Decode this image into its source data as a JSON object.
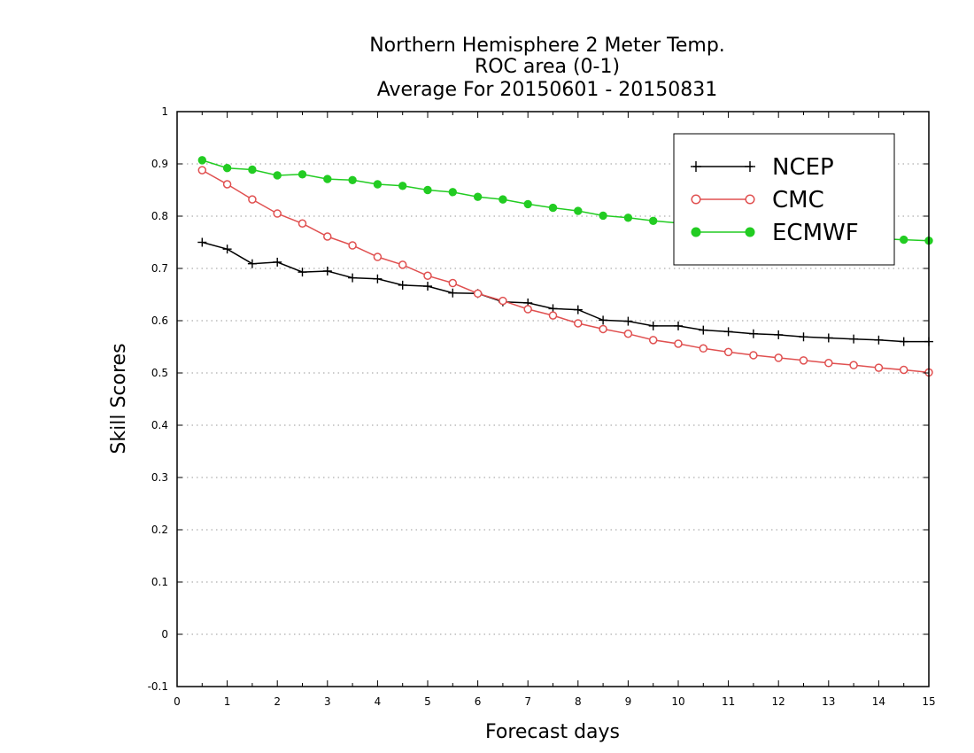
{
  "chart_data": {
    "type": "line",
    "title_lines": [
      "Northern Hemisphere 2 Meter Temp.",
      "ROC area (0-1)",
      "Average For 20150601 - 20150831"
    ],
    "xlabel": "Forecast days",
    "ylabel": "Skill Scores",
    "xlim": [
      0,
      15
    ],
    "ylim": [
      -0.1,
      1
    ],
    "x_ticks": [
      0,
      1,
      2,
      3,
      4,
      5,
      6,
      7,
      8,
      9,
      10,
      11,
      12,
      13,
      14,
      15
    ],
    "y_ticks": [
      -0.1,
      0,
      0.1,
      0.2,
      0.3,
      0.4,
      0.5,
      0.6,
      0.7,
      0.8,
      0.9,
      1
    ],
    "y_tick_labels": [
      "-0.1",
      "0",
      "0.1",
      "0.2",
      "0.3",
      "0.4",
      "0.5",
      "0.6",
      "0.7",
      "0.8",
      "0.9",
      "1"
    ],
    "grid": "horizontal dotted",
    "legend_position": "top-right",
    "x": [
      0.5,
      1,
      1.5,
      2,
      2.5,
      3,
      3.5,
      4,
      4.5,
      5,
      5.5,
      6,
      6.5,
      7,
      7.5,
      8,
      8.5,
      9,
      9.5,
      10,
      10.5,
      11,
      11.5,
      12,
      12.5,
      13,
      13.5,
      14,
      14.5,
      15
    ],
    "series": [
      {
        "name": "NCEP",
        "color": "#000000",
        "marker": "plus",
        "values": [
          0.75,
          0.737,
          0.709,
          0.712,
          0.693,
          0.695,
          0.682,
          0.68,
          0.668,
          0.666,
          0.653,
          0.652,
          0.636,
          0.634,
          0.623,
          0.621,
          0.601,
          0.599,
          0.59,
          0.59,
          0.582,
          0.579,
          0.575,
          0.573,
          0.569,
          0.567,
          0.565,
          0.563,
          0.56,
          0.56
        ]
      },
      {
        "name": "CMC",
        "color": "#e05050",
        "marker": "open-circle",
        "values": [
          0.888,
          0.861,
          0.832,
          0.805,
          0.786,
          0.761,
          0.744,
          0.722,
          0.707,
          0.686,
          0.672,
          0.652,
          0.638,
          0.622,
          0.61,
          0.595,
          0.584,
          0.575,
          0.563,
          0.556,
          0.547,
          0.54,
          0.534,
          0.529,
          0.524,
          0.519,
          0.515,
          0.51,
          0.506,
          0.501
        ]
      },
      {
        "name": "ECMWF",
        "color": "#22cc22",
        "marker": "filled-circle",
        "values": [
          0.907,
          0.892,
          0.889,
          0.878,
          0.88,
          0.871,
          0.869,
          0.861,
          0.858,
          0.85,
          0.846,
          0.837,
          0.832,
          0.823,
          0.816,
          0.81,
          0.801,
          0.797,
          0.791,
          0.787,
          0.782,
          0.777,
          0.773,
          0.769,
          0.766,
          0.763,
          0.76,
          0.757,
          0.755,
          0.753
        ]
      }
    ]
  }
}
